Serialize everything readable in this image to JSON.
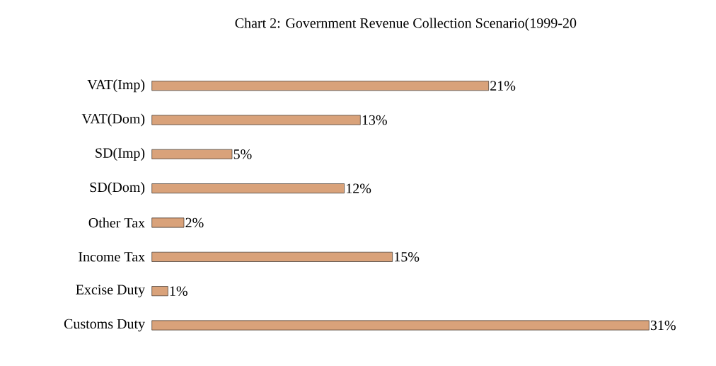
{
  "chart_data": {
    "type": "bar",
    "orientation": "horizontal",
    "title": "Chart 2: Government Revenue Collection Scenario(1999-20",
    "categories": [
      "VAT(Imp)",
      "VAT(Dom)",
      "SD(Imp)",
      "SD(Dom)",
      "Other Tax",
      "Income Tax",
      "Excise Duty",
      "Customs Duty"
    ],
    "values": [
      21,
      13,
      5,
      12,
      2,
      15,
      1,
      31
    ],
    "value_labels": [
      "21%",
      "13%",
      "5%",
      "12%",
      "2%",
      "15%",
      "1%",
      "31%"
    ],
    "color": "#d9a27a"
  }
}
